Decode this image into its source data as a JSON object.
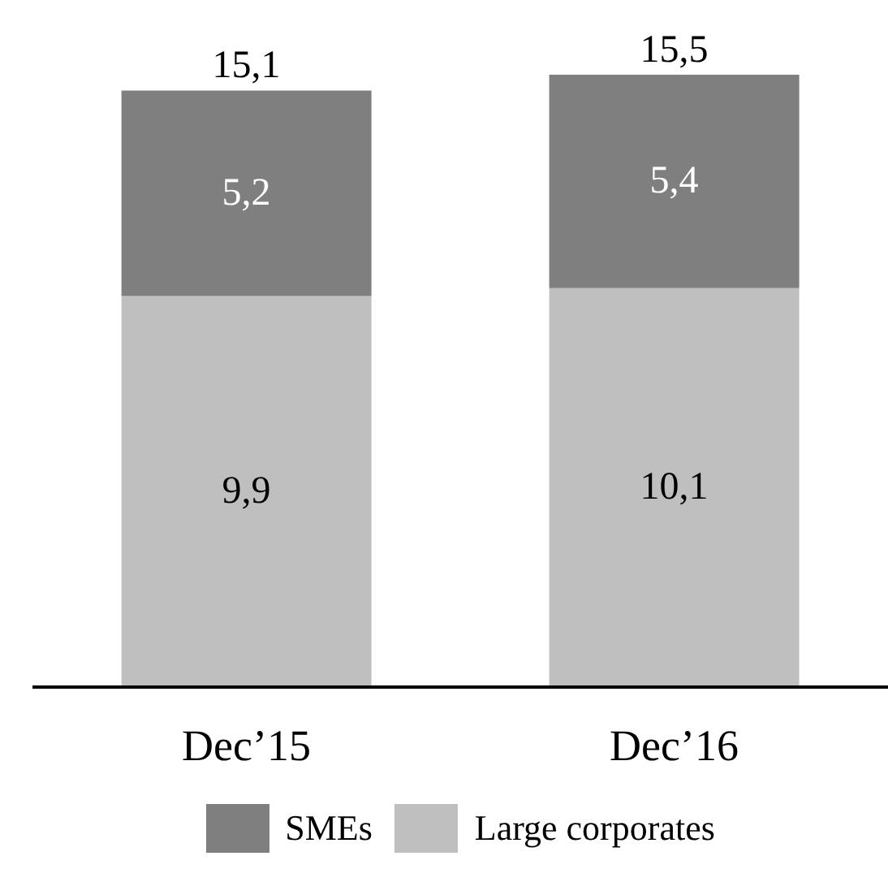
{
  "chart_data": {
    "type": "bar",
    "stacked": true,
    "categories": [
      "Dec’15",
      "Dec’16"
    ],
    "series": [
      {
        "name": "Large corporates",
        "color": "#bfbfbf",
        "values": [
          9.9,
          10.1
        ],
        "value_labels": [
          "9,9",
          "10,1"
        ]
      },
      {
        "name": "SMEs",
        "color": "#7f7f7f",
        "values": [
          5.2,
          5.4
        ],
        "value_labels": [
          "5,2",
          "5,4"
        ]
      }
    ],
    "totals": [
      "15,1",
      "15,5"
    ],
    "legend": "bottom",
    "grid": false
  }
}
